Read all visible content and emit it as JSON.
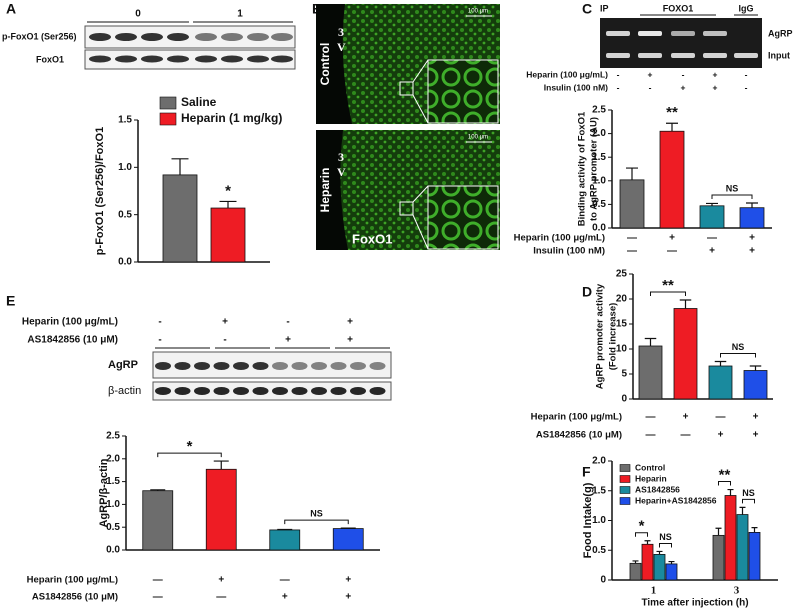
{
  "panel_labels": [
    "A",
    "B",
    "C",
    "D",
    "E",
    "F"
  ],
  "blot_a": {
    "groups": [
      "0",
      "1"
    ],
    "rows": [
      "p-FoxO1 (Ser256)",
      "FoxO1"
    ]
  },
  "images_b": {
    "conditions": [
      "Control",
      "Heparin"
    ],
    "region": [
      "3",
      "V"
    ],
    "scale": "100 μm",
    "stain": "FoxO1"
  },
  "gel_c": {
    "ip": "IP",
    "antibodies": [
      "FOXO1",
      "IgG"
    ],
    "rows": [
      "AgRP",
      "Input"
    ],
    "treatments": [
      {
        "label": "Heparin (100 μg/mL)",
        "marks": [
          "-",
          "+",
          "-",
          "+",
          "-"
        ]
      },
      {
        "label": "Insulin (100 nM)",
        "marks": [
          "-",
          "-",
          "+",
          "+",
          "-"
        ]
      }
    ]
  },
  "blot_e": {
    "treatments": [
      {
        "label": "Heparin (100 μg/mL)",
        "marks": [
          "-",
          "+",
          "-",
          "+"
        ]
      },
      {
        "label": "AS1842856 (10 μM)",
        "marks": [
          "-",
          "-",
          "+",
          "+"
        ]
      }
    ],
    "rows": [
      "AgRP",
      "β-actin"
    ]
  },
  "chart_data": [
    {
      "type": "bar",
      "ylabel": [
        "p-FoxO1 (Ser256)/FoxO1"
      ],
      "ylim": [
        0,
        1.5
      ],
      "yticks": [
        {
          "value": 0,
          "label": "0.0"
        },
        0.5,
        {
          "value": 1,
          "label": "1.0"
        },
        1.5
      ],
      "series": [
        {
          "name": "Saline",
          "color": "#6d6d6d",
          "values": [
            0.92
          ],
          "errors": [
            0.17
          ]
        },
        {
          "name": "Heparin (1 mg/kg)",
          "color": "#ee1c24",
          "values": [
            0.57
          ],
          "errors": [
            0.07
          ]
        }
      ],
      "annotations": [
        "*"
      ]
    },
    {
      "type": "bar",
      "ylabel": [
        "Binding activity of FoxO1",
        "to AgRP promoter (AU)"
      ],
      "ylim": [
        0,
        2.5
      ],
      "yticks": [
        {
          "value": 0,
          "label": "0.0"
        },
        0.5,
        {
          "value": 1,
          "label": "1.0"
        },
        1.5,
        {
          "value": 2,
          "label": "2.0"
        },
        2.5
      ],
      "values": [
        1.02,
        2.05,
        0.47,
        0.43
      ],
      "errors": [
        0.25,
        0.17,
        0.05,
        0.1
      ],
      "colors": [
        "#6d6d6d",
        "#ee1c24",
        "#1a8a9e",
        "#1f4fe8"
      ],
      "conditions": [
        {
          "label": "Heparin (100 μg/mL)",
          "marks": [
            "—",
            "+",
            "—",
            "+"
          ]
        },
        {
          "label": "Insulin (100 nM)",
          "marks": [
            "—",
            "—",
            "+",
            "+"
          ]
        }
      ],
      "annotations": [
        "**",
        "NS"
      ]
    },
    {
      "type": "bar",
      "ylabel": [
        "AgRP promoter activity",
        "(Fold increase)"
      ],
      "ylim": [
        0,
        25
      ],
      "yticks": [
        0,
        5,
        10,
        15,
        20,
        25
      ],
      "values": [
        10.6,
        18.1,
        6.6,
        5.7
      ],
      "errors": [
        1.5,
        1.7,
        0.9,
        0.9
      ],
      "colors": [
        "#6d6d6d",
        "#ee1c24",
        "#1a8a9e",
        "#1f4fe8"
      ],
      "conditions": [
        {
          "label": "Heparin (100 μg/mL)",
          "marks": [
            "—",
            "+",
            "—",
            "+"
          ]
        },
        {
          "label": "AS1842856 (10 μM)",
          "marks": [
            "—",
            "—",
            "+",
            "+"
          ]
        }
      ],
      "annotations": [
        "**",
        "NS"
      ]
    },
    {
      "type": "bar",
      "ylabel": [
        "AgRP/β-actin"
      ],
      "ylim": [
        0,
        2.5
      ],
      "yticks": [
        {
          "value": 0,
          "label": "0.0"
        },
        0.5,
        {
          "value": 1,
          "label": "1.0"
        },
        1.5,
        {
          "value": 2,
          "label": "2.0"
        },
        2.5
      ],
      "values": [
        1.3,
        1.77,
        0.44,
        0.47
      ],
      "errors": [
        0.02,
        0.18,
        0.01,
        0.01
      ],
      "colors": [
        "#6d6d6d",
        "#ee1c24",
        "#1a8a9e",
        "#1f4fe8"
      ],
      "conditions": [
        {
          "label": "Heparin (100 μg/mL)",
          "marks": [
            "—",
            "+",
            "—",
            "+"
          ]
        },
        {
          "label": "AS1842856 (10 μM)",
          "marks": [
            "—",
            "—",
            "+",
            "+"
          ]
        }
      ],
      "annotations": [
        "*",
        "NS"
      ]
    },
    {
      "type": "bar",
      "categories": [
        "1",
        "3"
      ],
      "xlabel": "Time after injection (h)",
      "ylabel": [
        "Food Intake(g)"
      ],
      "ylim": [
        0,
        2
      ],
      "yticks": [
        0,
        0.5,
        {
          "value": 1,
          "label": "1.0"
        },
        1.5,
        {
          "value": 2,
          "label": "2.0"
        }
      ],
      "legend": "upper left",
      "series": [
        {
          "name": "Control",
          "color": "#6d6d6d",
          "values": [
            0.28,
            0.75
          ],
          "errors": [
            0.04,
            0.12
          ]
        },
        {
          "name": "Heparin",
          "color": "#ee1c24",
          "values": [
            0.6,
            1.42
          ],
          "errors": [
            0.06,
            0.1
          ]
        },
        {
          "name": "AS1842856",
          "color": "#1a8a9e",
          "values": [
            0.43,
            1.1
          ],
          "errors": [
            0.05,
            0.12
          ]
        },
        {
          "name": "Heparin+AS1842856",
          "color": "#1f4fe8",
          "values": [
            0.27,
            0.8
          ],
          "errors": [
            0.04,
            0.08
          ]
        }
      ],
      "annotations": [
        "*",
        "NS",
        "**",
        "NS"
      ]
    }
  ]
}
